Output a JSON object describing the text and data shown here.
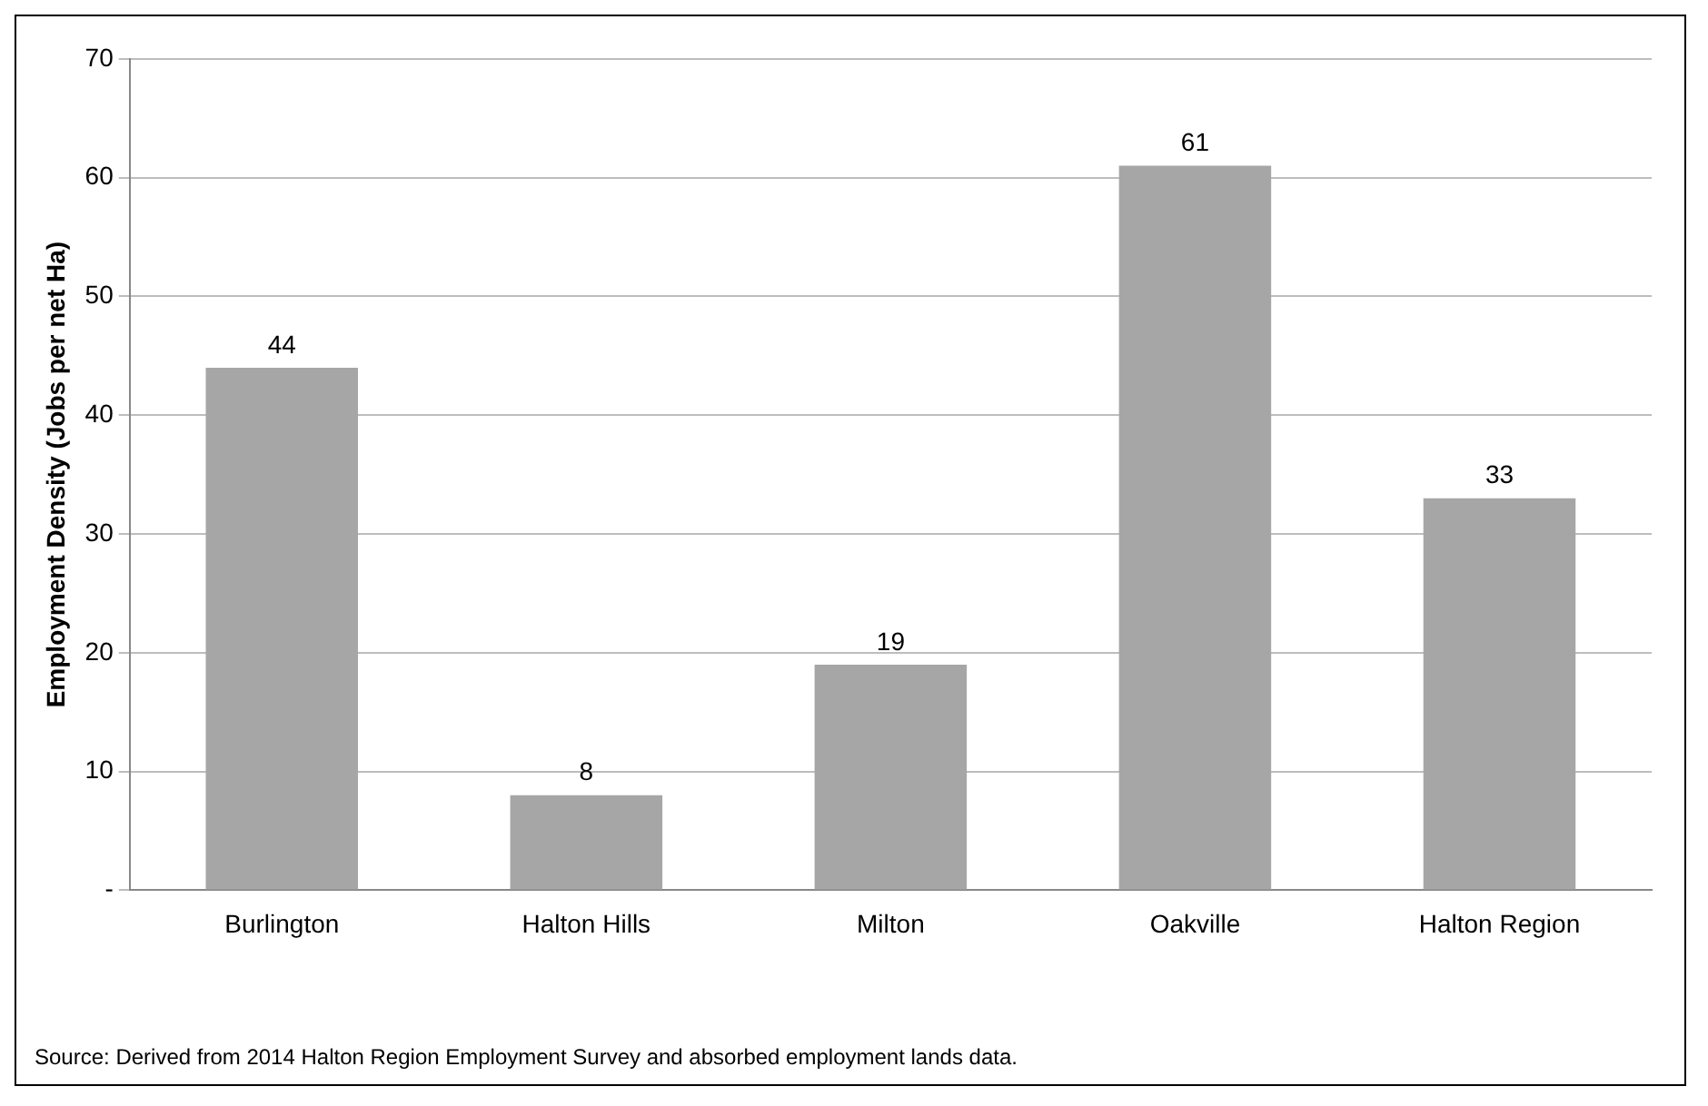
{
  "chart_data": {
    "type": "bar",
    "ylabel": "Employment Density (Jobs per net Ha)",
    "categories": [
      "Burlington",
      "Halton Hills",
      "Milton",
      "Oakville",
      "Halton Region"
    ],
    "values": [
      44,
      8,
      19,
      61,
      33
    ],
    "color": "#a6a6a6",
    "ylim": [
      0,
      70
    ],
    "yticks": [
      {
        "value": 0,
        "label": "-"
      },
      10,
      20,
      30,
      40,
      50,
      60,
      70
    ],
    "grid": "y",
    "data_labels": true,
    "legend": false,
    "annotations": [
      "Source: Derived from 2014 Halton Region Employment Survey and absorbed employment lands data."
    ]
  }
}
